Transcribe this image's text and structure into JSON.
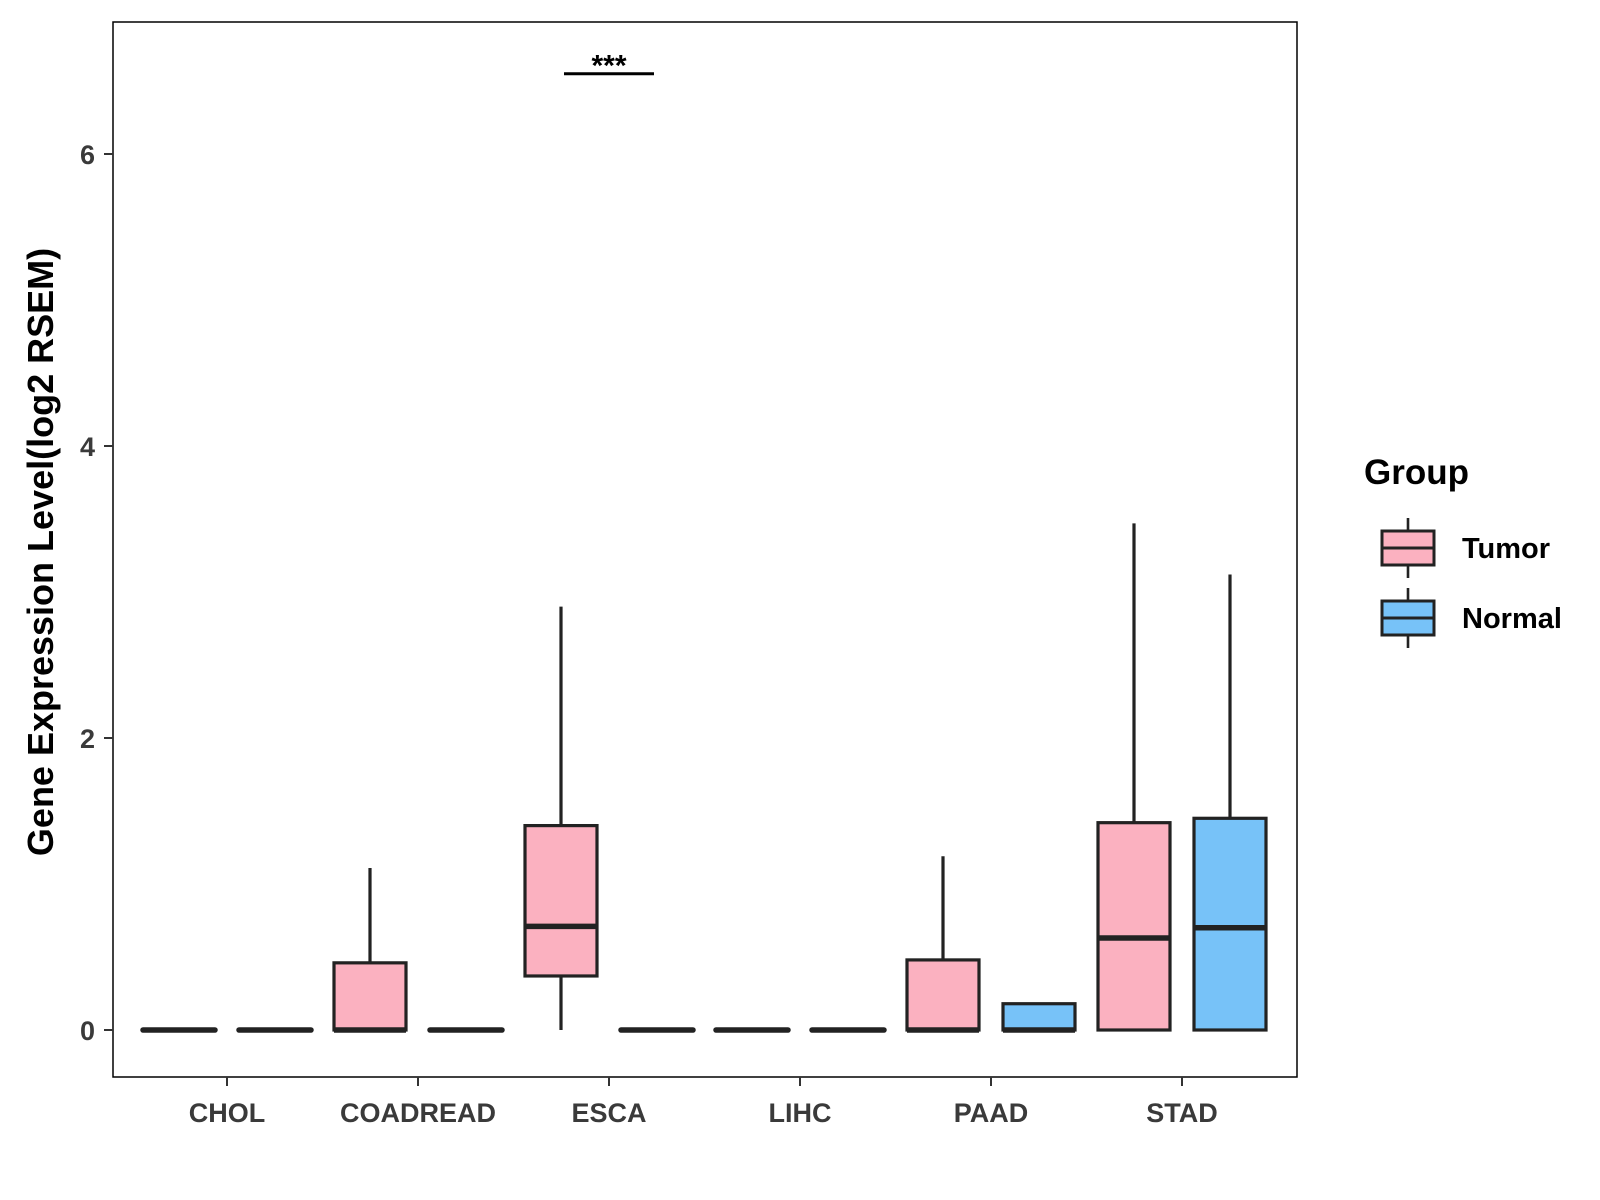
{
  "chart_data": {
    "type": "boxplot",
    "title": "",
    "xlabel": "",
    "ylabel": "Gene Expression Level(log2 RSEM)",
    "ylim": [
      -0.32,
      6.9
    ],
    "yticks": [
      0,
      2,
      4,
      6
    ],
    "categories": [
      "CHOL",
      "COADREAD",
      "ESCA",
      "LIHC",
      "PAAD",
      "STAD"
    ],
    "legend": {
      "title": "Group",
      "position": "right",
      "entries": [
        {
          "name": "Tumor",
          "color": "#FBB1C0"
        },
        {
          "name": "Normal",
          "color": "#77C2F8"
        }
      ]
    },
    "series": [
      {
        "name": "Tumor",
        "color": "#FBB1C0",
        "boxes": [
          {
            "category": "CHOL",
            "min": 0,
            "q1": 0,
            "median": 0,
            "q3": 0,
            "max": 0
          },
          {
            "category": "COADREAD",
            "min": 0,
            "q1": 0,
            "median": 0,
            "q3": 0.46,
            "max": 1.11
          },
          {
            "category": "ESCA",
            "min": 0,
            "q1": 0.37,
            "median": 0.71,
            "q3": 1.4,
            "max": 2.9
          },
          {
            "category": "LIHC",
            "min": 0,
            "q1": 0,
            "median": 0,
            "q3": 0,
            "max": 0
          },
          {
            "category": "PAAD",
            "min": 0,
            "q1": 0,
            "median": 0,
            "q3": 0.48,
            "max": 1.19
          },
          {
            "category": "STAD",
            "min": 0,
            "q1": 0,
            "median": 0.63,
            "q3": 1.42,
            "max": 3.47
          }
        ]
      },
      {
        "name": "Normal",
        "color": "#77C2F8",
        "boxes": [
          {
            "category": "CHOL",
            "min": 0,
            "q1": 0,
            "median": 0,
            "q3": 0,
            "max": 0
          },
          {
            "category": "COADREAD",
            "min": 0,
            "q1": 0,
            "median": 0,
            "q3": 0,
            "max": 0
          },
          {
            "category": "ESCA",
            "min": 0,
            "q1": 0,
            "median": 0,
            "q3": 0,
            "max": 0
          },
          {
            "category": "LIHC",
            "min": 0,
            "q1": 0,
            "median": 0,
            "q3": 0,
            "max": 0
          },
          {
            "category": "PAAD",
            "min": 0,
            "q1": 0,
            "median": 0,
            "q3": 0.18,
            "max": 0.18
          },
          {
            "category": "STAD",
            "min": 0,
            "q1": 0,
            "median": 0.7,
            "q3": 1.45,
            "max": 3.12
          }
        ]
      }
    ],
    "annotations": [
      {
        "category": "ESCA",
        "text": "***",
        "y": 6.55
      }
    ]
  }
}
